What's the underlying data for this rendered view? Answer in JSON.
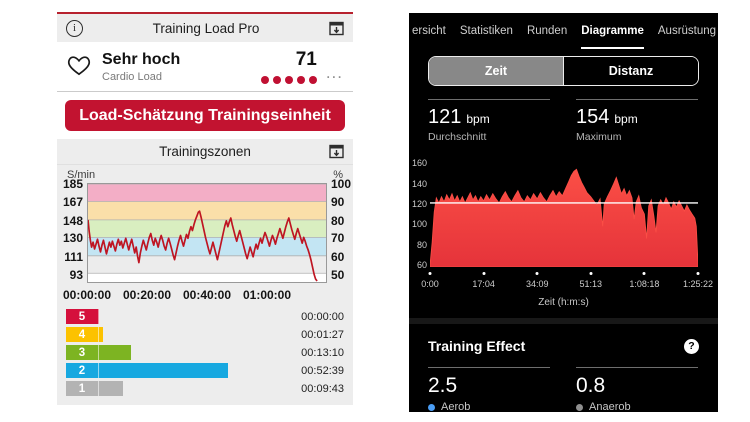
{
  "left_app": {
    "header": {
      "title": "Training Load Pro"
    },
    "cardio": {
      "status": "Sehr hoch",
      "label": "Cardio Load",
      "value": "71",
      "dots": 5,
      "dot_color": "#c01032",
      "menu": "..."
    },
    "button_label": "Load-Schätzung Trainingseinheit",
    "zones": {
      "title": "Trainingszonen",
      "unit_left": "S/min",
      "unit_right": "%",
      "bars": [
        {
          "zone": "5",
          "time": "00:00:00",
          "seconds": 0,
          "color": "#d5103c"
        },
        {
          "zone": "4",
          "time": "00:01:27",
          "seconds": 87,
          "color": "#fcc200"
        },
        {
          "zone": "3",
          "time": "00:13:10",
          "seconds": 790,
          "color": "#7db422"
        },
        {
          "zone": "2",
          "time": "00:52:39",
          "seconds": 3159,
          "color": "#17a8e0"
        },
        {
          "zone": "1",
          "time": "00:09:43",
          "seconds": 583,
          "color": "#b3b3b3"
        }
      ]
    }
  },
  "right_app": {
    "tabs": [
      {
        "label": "ersicht",
        "active": false
      },
      {
        "label": "Statistiken",
        "active": false
      },
      {
        "label": "Runden",
        "active": false
      },
      {
        "label": "Diagramme",
        "active": true
      },
      {
        "label": "Ausrüstung",
        "active": false
      }
    ],
    "segmented": {
      "options": [
        {
          "label": "Zeit",
          "selected": true
        },
        {
          "label": "Distanz",
          "selected": false
        }
      ]
    },
    "hr_stats": [
      {
        "value": "121",
        "unit": "bpm",
        "label": "Durchschnitt"
      },
      {
        "value": "154",
        "unit": "bpm",
        "label": "Maximum"
      }
    ],
    "xaxis_title": "Zeit (h:m:s)",
    "training_effect": {
      "title": "Training Effect",
      "help": "?",
      "items": [
        {
          "value": "2.5",
          "label": "Aerob",
          "dot_color": "#4a9df5"
        },
        {
          "value": "0.8",
          "label": "Anaerob",
          "dot_color": "#8f8f8f"
        }
      ]
    }
  },
  "chart_data": [
    {
      "type": "line",
      "title": "Trainingszonen",
      "ylabel_left": "S/min",
      "ylabel_right": "%",
      "xlim": [
        0,
        80
      ],
      "ylim": [
        84,
        185
      ],
      "line_color": "#bf1522",
      "grid_color": "#b0b0b0",
      "y_ticks": [
        {
          "bpm": 185,
          "pct": "100"
        },
        {
          "bpm": 167,
          "pct": "90"
        },
        {
          "bpm": 148,
          "pct": "80"
        },
        {
          "bpm": 130,
          "pct": "70"
        },
        {
          "bpm": 111,
          "pct": "60"
        },
        {
          "bpm": 93,
          "pct": "50"
        }
      ],
      "bands": [
        {
          "from": 167,
          "to": 185,
          "color": "#f3aec6"
        },
        {
          "from": 148,
          "to": 167,
          "color": "#fadfa9"
        },
        {
          "from": 130,
          "to": 148,
          "color": "#d9eec0"
        },
        {
          "from": 111,
          "to": 130,
          "color": "#c3e5f3"
        },
        {
          "from": 93,
          "to": 111,
          "color": "#ececec"
        },
        {
          "from": 84,
          "to": 93,
          "color": "#ffffff"
        }
      ],
      "x_ticks": [
        {
          "t": 0,
          "label": "00:00:00"
        },
        {
          "t": 20,
          "label": "00:20:00"
        },
        {
          "t": 40,
          "label": "00:40:00"
        },
        {
          "t": 60,
          "label": "01:00:00"
        }
      ],
      "series": [
        [
          0,
          148
        ],
        [
          0.4,
          136
        ],
        [
          0.8,
          127
        ],
        [
          1.2,
          120
        ],
        [
          1.7,
          125
        ],
        [
          2.2,
          118
        ],
        [
          2.7,
          123
        ],
        [
          3.2,
          128
        ],
        [
          3.7,
          121
        ],
        [
          4.2,
          115
        ],
        [
          4.7,
          122
        ],
        [
          5.2,
          127
        ],
        [
          5.7,
          120
        ],
        [
          6.2,
          113
        ],
        [
          6.7,
          119
        ],
        [
          7.2,
          125
        ],
        [
          7.7,
          120
        ],
        [
          8.2,
          126
        ],
        [
          8.7,
          121
        ],
        [
          9.2,
          116
        ],
        [
          9.7,
          123
        ],
        [
          10.2,
          128
        ],
        [
          10.7,
          122
        ],
        [
          11.2,
          126
        ],
        [
          11.7,
          119
        ],
        [
          12.2,
          124
        ],
        [
          12.7,
          129
        ],
        [
          13.2,
          123
        ],
        [
          13.7,
          117
        ],
        [
          14.2,
          123
        ],
        [
          14.7,
          128
        ],
        [
          15.2,
          121
        ],
        [
          15.7,
          114
        ],
        [
          16.2,
          120
        ],
        [
          16.7,
          110
        ],
        [
          17.1,
          104
        ],
        [
          17.6,
          114
        ],
        [
          18.1,
          121
        ],
        [
          18.6,
          127
        ],
        [
          19.1,
          122
        ],
        [
          19.6,
          117
        ],
        [
          20.1,
          124
        ],
        [
          20.6,
          130
        ],
        [
          21.1,
          134
        ],
        [
          21.6,
          127
        ],
        [
          22.1,
          122
        ],
        [
          22.6,
          129
        ],
        [
          23.1,
          125
        ],
        [
          23.6,
          120
        ],
        [
          24.1,
          127
        ],
        [
          24.6,
          132
        ],
        [
          25.1,
          127
        ],
        [
          25.6,
          121
        ],
        [
          26.1,
          117
        ],
        [
          26.6,
          124
        ],
        [
          27.1,
          129
        ],
        [
          27.6,
          124
        ],
        [
          28.1,
          118
        ],
        [
          28.6,
          112
        ],
        [
          29.1,
          107
        ],
        [
          29.6,
          114
        ],
        [
          30.1,
          121
        ],
        [
          30.6,
          127
        ],
        [
          31.1,
          132
        ],
        [
          31.6,
          126
        ],
        [
          32.1,
          121
        ],
        [
          32.6,
          127
        ],
        [
          33.1,
          133
        ],
        [
          33.6,
          129
        ],
        [
          34.1,
          136
        ],
        [
          34.6,
          141
        ],
        [
          35.1,
          137
        ],
        [
          35.6,
          143
        ],
        [
          36.1,
          148
        ],
        [
          36.6,
          152
        ],
        [
          37.1,
          156
        ],
        [
          37.5,
          157
        ],
        [
          38,
          151
        ],
        [
          38.5,
          144
        ],
        [
          39,
          137
        ],
        [
          39.5,
          130
        ],
        [
          40,
          124
        ],
        [
          40.5,
          118
        ],
        [
          41,
          113
        ],
        [
          41.5,
          119
        ],
        [
          42,
          125
        ],
        [
          42.5,
          119
        ],
        [
          43,
          113
        ],
        [
          43.5,
          107
        ],
        [
          44,
          114
        ],
        [
          44.5,
          121
        ],
        [
          45,
          128
        ],
        [
          45.5,
          135
        ],
        [
          46,
          142
        ],
        [
          46.5,
          147
        ],
        [
          47,
          141
        ],
        [
          47.5,
          146
        ],
        [
          48,
          150
        ],
        [
          48.5,
          143
        ],
        [
          49,
          137
        ],
        [
          49.5,
          131
        ],
        [
          50,
          126
        ],
        [
          50.5,
          132
        ],
        [
          51,
          137
        ],
        [
          51.5,
          131
        ],
        [
          52,
          125
        ],
        [
          52.5,
          119
        ],
        [
          53,
          113
        ],
        [
          53.5,
          108
        ],
        [
          54,
          114
        ],
        [
          54.5,
          120
        ],
        [
          55,
          115
        ],
        [
          55.5,
          110
        ],
        [
          56,
          117
        ],
        [
          56.5,
          123
        ],
        [
          57,
          118
        ],
        [
          57.5,
          124
        ],
        [
          58,
          129
        ],
        [
          58.5,
          124
        ],
        [
          59,
          130
        ],
        [
          59.5,
          135
        ],
        [
          60,
          131
        ],
        [
          60.5,
          126
        ],
        [
          61,
          121
        ],
        [
          61.5,
          127
        ],
        [
          62,
          132
        ],
        [
          62.5,
          128
        ],
        [
          63,
          123
        ],
        [
          63.5,
          129
        ],
        [
          64,
          134
        ],
        [
          64.5,
          139
        ],
        [
          65,
          134
        ],
        [
          65.5,
          129
        ],
        [
          66,
          135
        ],
        [
          66.5,
          141
        ],
        [
          67,
          146
        ],
        [
          67.5,
          150
        ],
        [
          68,
          144
        ],
        [
          68.5,
          138
        ],
        [
          69,
          133
        ],
        [
          69.5,
          128
        ],
        [
          70,
          134
        ],
        [
          70.5,
          139
        ],
        [
          71,
          134
        ],
        [
          71.5,
          129
        ],
        [
          72,
          124
        ],
        [
          72.5,
          130
        ],
        [
          73,
          126
        ],
        [
          73.5,
          121
        ],
        [
          74,
          117
        ],
        [
          74.5,
          112
        ],
        [
          75,
          106
        ],
        [
          75.5,
          99
        ],
        [
          76,
          92
        ],
        [
          76.5,
          87
        ],
        [
          77,
          85
        ]
      ]
    },
    {
      "type": "area",
      "average_bpm": 121,
      "max_bpm": 154,
      "xlim_seconds": [
        0,
        5122
      ],
      "ylim": [
        58,
        168
      ],
      "y_ticks": [
        160,
        140,
        120,
        100,
        80,
        60
      ],
      "x_ticks": [
        {
          "sec": 0,
          "label": "0:00"
        },
        {
          "sec": 1024,
          "label": "17:04"
        },
        {
          "sec": 2049,
          "label": "34:09"
        },
        {
          "sec": 3073,
          "label": "51:13"
        },
        {
          "sec": 4098,
          "label": "1:08:18"
        },
        {
          "sec": 5122,
          "label": "1:25:22"
        }
      ],
      "xlabel": "Zeit (h:m:s)",
      "fill_top": "#fb4f46",
      "fill_bottom": "#e5333a",
      "avg_line_color": "#ffffff",
      "series": [
        [
          0,
          60
        ],
        [
          40,
          82
        ],
        [
          80,
          112
        ],
        [
          120,
          126
        ],
        [
          170,
          121
        ],
        [
          220,
          127
        ],
        [
          270,
          122
        ],
        [
          320,
          129
        ],
        [
          370,
          124
        ],
        [
          420,
          130
        ],
        [
          470,
          123
        ],
        [
          520,
          128
        ],
        [
          570,
          122
        ],
        [
          620,
          127
        ],
        [
          670,
          121
        ],
        [
          720,
          126
        ],
        [
          770,
          131
        ],
        [
          820,
          124
        ],
        [
          870,
          128
        ],
        [
          920,
          122
        ],
        [
          970,
          127
        ],
        [
          1024,
          123
        ],
        [
          1080,
          129
        ],
        [
          1140,
          124
        ],
        [
          1200,
          130
        ],
        [
          1260,
          125
        ],
        [
          1320,
          121
        ],
        [
          1380,
          127
        ],
        [
          1440,
          132
        ],
        [
          1500,
          126
        ],
        [
          1560,
          122
        ],
        [
          1620,
          128
        ],
        [
          1680,
          133
        ],
        [
          1740,
          126
        ],
        [
          1800,
          122
        ],
        [
          1860,
          128
        ],
        [
          1920,
          124
        ],
        [
          1980,
          130
        ],
        [
          2049,
          125
        ],
        [
          2110,
          131
        ],
        [
          2170,
          126
        ],
        [
          2230,
          122
        ],
        [
          2290,
          128
        ],
        [
          2350,
          133
        ],
        [
          2410,
          127
        ],
        [
          2470,
          132
        ],
        [
          2530,
          128
        ],
        [
          2590,
          135
        ],
        [
          2650,
          142
        ],
        [
          2700,
          148
        ],
        [
          2750,
          152
        ],
        [
          2800,
          154
        ],
        [
          2850,
          147
        ],
        [
          2900,
          141
        ],
        [
          2950,
          136
        ],
        [
          3000,
          131
        ],
        [
          3073,
          127
        ],
        [
          3130,
          123
        ],
        [
          3190,
          119
        ],
        [
          3250,
          125
        ],
        [
          3300,
          98
        ],
        [
          3330,
          120
        ],
        [
          3390,
          127
        ],
        [
          3450,
          133
        ],
        [
          3510,
          140
        ],
        [
          3560,
          146
        ],
        [
          3610,
          138
        ],
        [
          3660,
          130
        ],
        [
          3710,
          135
        ],
        [
          3760,
          128
        ],
        [
          3810,
          133
        ],
        [
          3860,
          126
        ],
        [
          3900,
          105
        ],
        [
          3940,
          122
        ],
        [
          3990,
          128
        ],
        [
          4040,
          116
        ],
        [
          4098,
          110
        ],
        [
          4140,
          86
        ],
        [
          4180,
          118
        ],
        [
          4230,
          124
        ],
        [
          4280,
          108
        ],
        [
          4320,
          92
        ],
        [
          4360,
          118
        ],
        [
          4410,
          124
        ],
        [
          4460,
          119
        ],
        [
          4510,
          126
        ],
        [
          4560,
          121
        ],
        [
          4610,
          115
        ],
        [
          4660,
          122
        ],
        [
          4710,
          117
        ],
        [
          4760,
          123
        ],
        [
          4810,
          118
        ],
        [
          4860,
          113
        ],
        [
          4910,
          119
        ],
        [
          4960,
          114
        ],
        [
          5010,
          110
        ],
        [
          5060,
          106
        ],
        [
          5090,
          98
        ],
        [
          5122,
          62
        ]
      ]
    }
  ]
}
